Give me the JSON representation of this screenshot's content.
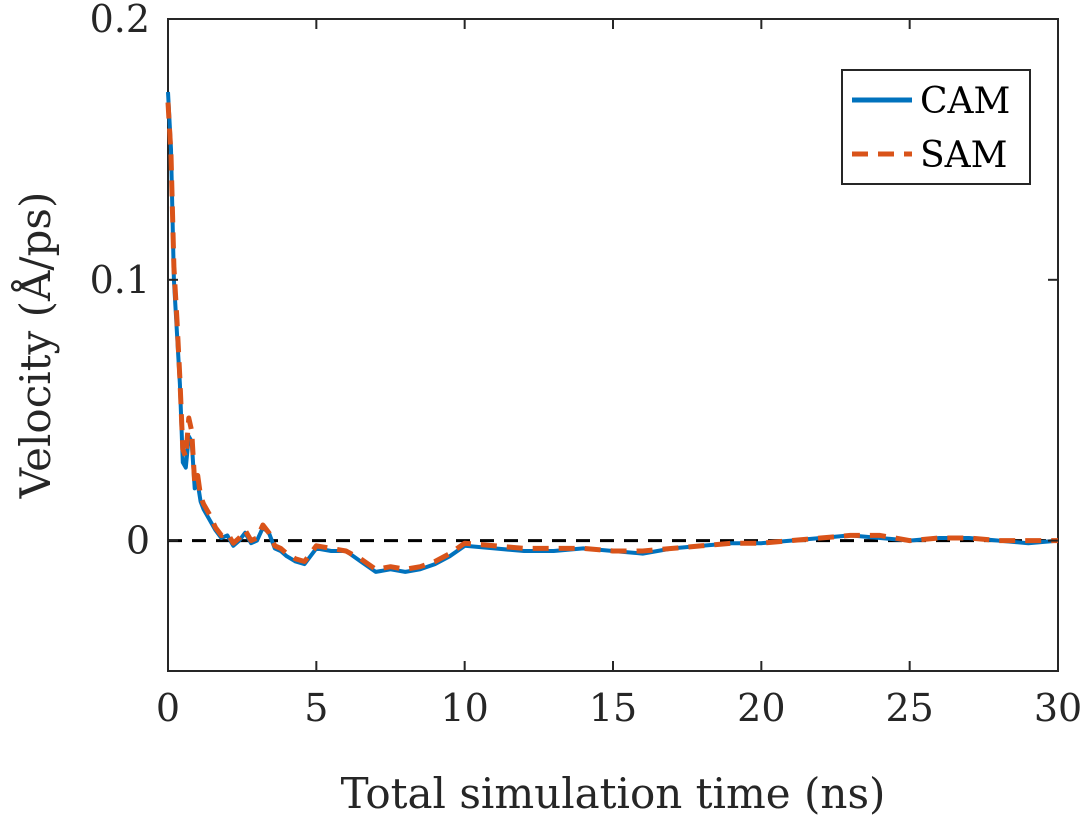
{
  "chart_data": {
    "type": "line",
    "xlabel": "Total simulation time (ns)",
    "ylabel": "Velocity (Å/ps)",
    "xlim": [
      0,
      30
    ],
    "ylim": [
      -0.05,
      0.2
    ],
    "xticks": [
      0,
      5,
      10,
      15,
      20,
      25,
      30
    ],
    "xtick_labels": [
      "0",
      "5",
      "10",
      "15",
      "20",
      "25",
      "30"
    ],
    "yticks": [
      0,
      0.1,
      0.2
    ],
    "ytick_labels": [
      "0",
      "0.1",
      "0.2"
    ],
    "reference_line": {
      "y": 0,
      "style": "dashed",
      "color": "#000000"
    },
    "legend": {
      "location": "top-right",
      "entries": [
        "CAM",
        "SAM"
      ]
    },
    "series": [
      {
        "name": "CAM",
        "color": "#0072BD",
        "style": "solid",
        "x": [
          0.0,
          0.1,
          0.2,
          0.3,
          0.4,
          0.5,
          0.6,
          0.7,
          0.8,
          0.9,
          1.0,
          1.1,
          1.2,
          1.4,
          1.6,
          1.8,
          2.0,
          2.2,
          2.4,
          2.6,
          2.8,
          3.0,
          3.2,
          3.4,
          3.6,
          3.8,
          4.0,
          4.3,
          4.6,
          5.0,
          5.5,
          6.0,
          6.5,
          7.0,
          7.5,
          8.0,
          8.5,
          9.0,
          9.5,
          10.0,
          11.0,
          12.0,
          13.0,
          14.0,
          15.0,
          16.0,
          17.0,
          18.0,
          19.0,
          20.0,
          21.0,
          22.0,
          23.0,
          24.0,
          25.0,
          26.0,
          27.0,
          28.0,
          29.0,
          30.0
        ],
        "values": [
          0.172,
          0.15,
          0.1,
          0.08,
          0.06,
          0.03,
          0.028,
          0.04,
          0.038,
          0.02,
          0.022,
          0.015,
          0.012,
          0.008,
          0.004,
          0.001,
          0.002,
          -0.002,
          0.0,
          0.003,
          -0.001,
          0.0,
          0.005,
          0.003,
          -0.003,
          -0.004,
          -0.006,
          -0.008,
          -0.009,
          -0.003,
          -0.004,
          -0.004,
          -0.008,
          -0.012,
          -0.011,
          -0.012,
          -0.011,
          -0.009,
          -0.006,
          -0.002,
          -0.003,
          -0.004,
          -0.004,
          -0.003,
          -0.004,
          -0.005,
          -0.003,
          -0.002,
          -0.001,
          -0.001,
          0.0,
          0.001,
          0.002,
          0.001,
          0.0,
          0.001,
          0.001,
          0.0,
          -0.001,
          0.0
        ]
      },
      {
        "name": "SAM",
        "color": "#D95319",
        "style": "dashed",
        "x": [
          0.0,
          0.1,
          0.2,
          0.3,
          0.4,
          0.5,
          0.6,
          0.7,
          0.8,
          0.9,
          1.0,
          1.1,
          1.2,
          1.4,
          1.6,
          1.8,
          2.0,
          2.2,
          2.4,
          2.6,
          2.8,
          3.0,
          3.2,
          3.4,
          3.6,
          3.8,
          4.0,
          4.3,
          4.6,
          5.0,
          5.5,
          6.0,
          6.5,
          7.0,
          7.5,
          8.0,
          8.5,
          9.0,
          9.5,
          10.0,
          11.0,
          12.0,
          13.0,
          14.0,
          15.0,
          16.0,
          17.0,
          18.0,
          19.0,
          20.0,
          21.0,
          22.0,
          23.0,
          24.0,
          25.0,
          26.0,
          27.0,
          28.0,
          29.0,
          30.0
        ],
        "values": [
          0.168,
          0.148,
          0.105,
          0.085,
          0.062,
          0.035,
          0.032,
          0.047,
          0.042,
          0.022,
          0.025,
          0.017,
          0.014,
          0.01,
          0.005,
          0.002,
          0.003,
          -0.001,
          0.001,
          0.004,
          0.0,
          0.001,
          0.006,
          0.003,
          -0.002,
          -0.003,
          -0.005,
          -0.007,
          -0.008,
          -0.002,
          -0.003,
          -0.004,
          -0.007,
          -0.011,
          -0.01,
          -0.011,
          -0.01,
          -0.008,
          -0.005,
          -0.001,
          -0.002,
          -0.003,
          -0.003,
          -0.003,
          -0.004,
          -0.004,
          -0.003,
          -0.002,
          -0.001,
          -0.001,
          0.0,
          0.001,
          0.002,
          0.002,
          0.0,
          0.001,
          0.001,
          0.0,
          0.0,
          0.0
        ]
      }
    ]
  }
}
